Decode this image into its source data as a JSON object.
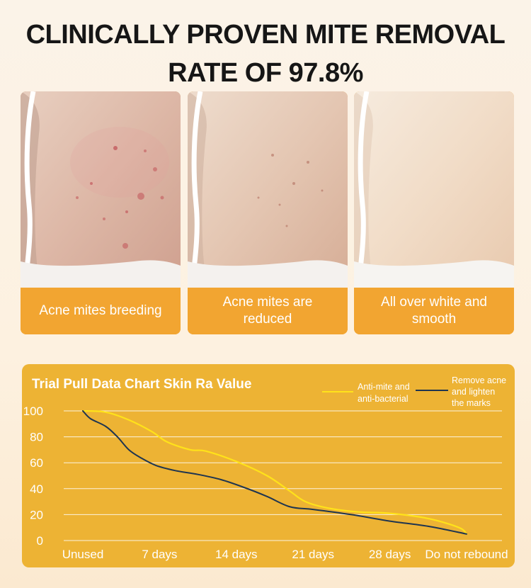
{
  "headline": {
    "line1": "CLINICALLY PROVEN MITE REMOVAL",
    "line2": "RATE OF 97.8%"
  },
  "panels": [
    {
      "caption": "Acne mites breeding"
    },
    {
      "caption": "Acne mites are reduced"
    },
    {
      "caption": "All over white and smooth"
    }
  ],
  "colors": {
    "panel_caption": "#f2a531",
    "chart_bg": "#edb334",
    "series_1": "#ffe21a",
    "series_2": "#1f3550"
  },
  "chart_data": {
    "type": "line",
    "title": "Trial Pull Data Chart Skin Ra Value",
    "categories": [
      "Unused",
      "7 days",
      "14 days",
      "21 days",
      "28 days",
      "Do not rebound"
    ],
    "ylim": [
      0,
      100
    ],
    "yticks": [
      0,
      20,
      40,
      60,
      80,
      100
    ],
    "grid": true,
    "legend_position": "top-right",
    "series": [
      {
        "name": "Anti-mite and anti-bacterial",
        "color": "#ffe21a",
        "points": [
          [
            0,
            100
          ],
          [
            0.3,
            99
          ],
          [
            0.6,
            93
          ],
          [
            0.9,
            84
          ],
          [
            1.1,
            76
          ],
          [
            1.4,
            70
          ],
          [
            1.6,
            69
          ],
          [
            2.0,
            61
          ],
          [
            2.4,
            50
          ],
          [
            2.7,
            38
          ],
          [
            2.9,
            30
          ],
          [
            3.2,
            25
          ],
          [
            3.6,
            22
          ],
          [
            4.0,
            21
          ],
          [
            4.5,
            17
          ],
          [
            4.9,
            10
          ],
          [
            5.0,
            5
          ]
        ]
      },
      {
        "name": "Remove acne and lighten the marks",
        "color": "#1f3550",
        "points": [
          [
            0,
            100
          ],
          [
            0.1,
            94
          ],
          [
            0.3,
            88
          ],
          [
            0.45,
            80
          ],
          [
            0.6,
            70
          ],
          [
            0.75,
            64
          ],
          [
            0.95,
            58
          ],
          [
            1.2,
            54
          ],
          [
            1.5,
            51
          ],
          [
            1.8,
            47
          ],
          [
            2.1,
            41
          ],
          [
            2.4,
            34
          ],
          [
            2.7,
            26
          ],
          [
            3.0,
            24
          ],
          [
            3.5,
            20
          ],
          [
            4.0,
            15
          ],
          [
            4.5,
            11
          ],
          [
            5.0,
            5
          ]
        ]
      }
    ]
  }
}
